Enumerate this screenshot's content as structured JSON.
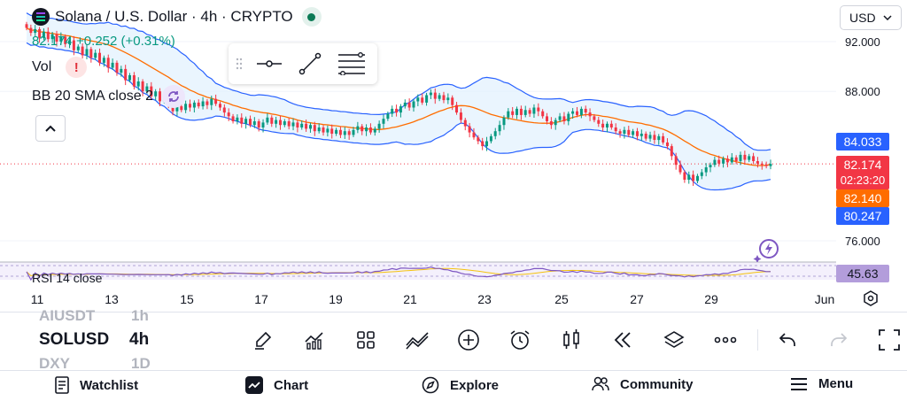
{
  "header": {
    "symbol_title": "Solana / U.S. Dollar · 4h · CRYPTO",
    "price_line": "82.174  +0.252 (+0.31%)",
    "vol_label": "Vol",
    "vol_warning": "!",
    "bb_label": "BB 20 SMA close 2",
    "currency": "USD"
  },
  "price_axis": {
    "ticks": [
      "92.000",
      "88.000",
      "76.000"
    ]
  },
  "price_tags": {
    "upper_band": "84.033",
    "last_price": "82.174",
    "countdown": "02:23:20",
    "basis": "82.140",
    "lower_band": "80.247",
    "rsi": "45.63"
  },
  "colors": {
    "bull": "#089981",
    "bear": "#f23645",
    "band": "#2962ff",
    "basis": "#ff6d00",
    "rsi": "#7e57c2"
  },
  "rsi_label": "RSI 14 close",
  "date_axis": [
    "11",
    "13",
    "15",
    "17",
    "19",
    "21",
    "23",
    "25",
    "27",
    "29",
    "Jun"
  ],
  "toolbar": {
    "watchlist_prev": "AIUSDT",
    "interval_prev": "1h",
    "symbol": "SOLUSD",
    "interval": "4h",
    "watchlist_next": "DXY",
    "interval_next": "1D"
  },
  "bottom_nav": {
    "watchlist": "Watchlist",
    "chart": "Chart",
    "explore": "Explore",
    "community": "Community",
    "menu": "Menu"
  },
  "chart_data": {
    "type": "candlestick",
    "title": "Solana / U.S. Dollar · 4h · CRYPTO",
    "x_ticks": [
      "11",
      "13",
      "15",
      "17",
      "19",
      "21",
      "23",
      "25",
      "27",
      "29",
      "Jun"
    ],
    "y_ticks": [
      92,
      88,
      76
    ],
    "ylim": [
      75,
      94
    ],
    "close": [
      93.1,
      92.7,
      93.0,
      92.3,
      92.8,
      92.2,
      92.6,
      92.0,
      92.4,
      91.8,
      92.1,
      91.3,
      91.6,
      90.9,
      91.4,
      90.7,
      91.1,
      90.3,
      90.7,
      89.9,
      90.3,
      89.5,
      89.8,
      88.9,
      89.3,
      88.4,
      88.8,
      88.0,
      88.4,
      87.6,
      88.0,
      87.2,
      87.6,
      86.9,
      86.4,
      86.8,
      86.5,
      87.0,
      86.7,
      87.1,
      86.8,
      87.2,
      86.9,
      87.4,
      87.0,
      86.7,
      86.3,
      86.0,
      85.6,
      85.9,
      85.4,
      85.8,
      85.3,
      85.6,
      85.1,
      85.5,
      85.9,
      85.4,
      85.7,
      85.3,
      85.6,
      85.2,
      85.5,
      85.1,
      85.4,
      85.0,
      85.3,
      84.8,
      85.1,
      84.7,
      85.0,
      84.6,
      84.9,
      84.5,
      84.8,
      84.5,
      84.9,
      85.2,
      84.8,
      85.1,
      84.7,
      85.0,
      85.4,
      85.8,
      86.2,
      86.6,
      86.3,
      86.8,
      87.1,
      86.7,
      87.2,
      87.5,
      87.1,
      87.7,
      87.9,
      87.4,
      87.7,
      87.3,
      87.5,
      86.9,
      86.3,
      85.7,
      85.2,
      84.7,
      84.3,
      84.0,
      83.6,
      84.0,
      84.4,
      84.8,
      85.3,
      85.9,
      86.4,
      86.1,
      86.6,
      86.1,
      86.5,
      86.2,
      86.7,
      86.4,
      86.0,
      85.6,
      85.3,
      85.7,
      86.0,
      85.6,
      86.2,
      86.4,
      86.1,
      86.6,
      86.3,
      86.0,
      85.7,
      85.4,
      85.1,
      85.4,
      85.1,
      84.8,
      84.6,
      84.9,
      84.5,
      84.8,
      84.4,
      84.6,
      84.2,
      84.5,
      84.1,
      84.4,
      83.9,
      83.6,
      82.8,
      82.1,
      81.5,
      80.9,
      81.3,
      80.8,
      81.2,
      81.5,
      81.9,
      82.1,
      82.5,
      82.2,
      82.6,
      82.3,
      82.7,
      82.4,
      82.9,
      82.5,
      82.8,
      82.4,
      82.2,
      82.1,
      82.0,
      82.174
    ],
    "upper_band_value": 84.033,
    "basis_value": 82.14,
    "lower_band_value": 80.247,
    "last_price": 82.174,
    "change": 0.252,
    "change_pct": 0.31,
    "rsi_value": 45.63
  }
}
